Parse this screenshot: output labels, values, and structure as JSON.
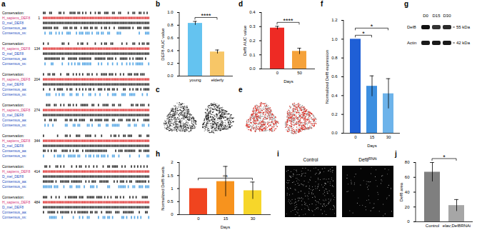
{
  "alignment": {
    "panel": "a",
    "row_labels": [
      "Conservation:",
      "H_sapiens_DEF8",
      "D_mel_DEF8",
      "Consensus_aa:",
      "Consensus_ss:"
    ],
    "block_starts": [
      1,
      134,
      204,
      274,
      344,
      414,
      484
    ]
  },
  "chart_data": [
    {
      "panel": "b",
      "type": "bar",
      "categories": [
        "young",
        "elderly"
      ],
      "values": [
        0.83,
        0.38
      ],
      "errors": [
        0.03,
        0.03
      ],
      "colors": [
        "#64c3f0",
        "#f7c667"
      ],
      "ylabel": "DEF8 AUC value",
      "ylim": [
        0,
        1.0
      ],
      "yticks": [
        {
          "value": 0,
          "label": "0.0"
        },
        0.2,
        0.4,
        0.6,
        0.8,
        {
          "value": 1,
          "label": "1.0"
        }
      ],
      "significance": [
        {
          "label": "****",
          "between": [
            "young",
            "elderly"
          ]
        }
      ]
    },
    {
      "panel": "d",
      "type": "bar",
      "categories": [
        "0",
        "50"
      ],
      "values": [
        0.29,
        0.125
      ],
      "errors": [
        0.012,
        0.022
      ],
      "colors": [
        "#ee2a24",
        "#f5a23a"
      ],
      "ylabel": "Def8 AUC value",
      "xlabel": "Days",
      "ylim": [
        0,
        0.4
      ],
      "yticks": [
        {
          "value": 0,
          "label": "0.0"
        },
        0.1,
        0.2,
        0.3,
        0.4
      ],
      "significance": [
        {
          "label": "****",
          "between": [
            "0",
            "50"
          ]
        }
      ]
    },
    {
      "panel": "f",
      "type": "bar",
      "categories": [
        "0",
        "15",
        "30"
      ],
      "values": [
        1.0,
        0.5,
        0.42
      ],
      "errors": [
        0,
        0.11,
        0.16
      ],
      "colors": [
        "#1f5fd6",
        "#3d8fe0",
        "#6db3ea"
      ],
      "ylabel": "Normalized Def8 expression",
      "xlabel": "Days",
      "ylim": [
        0,
        1.2
      ],
      "yticks": [
        {
          "value": 0,
          "label": "0.0"
        },
        0.2,
        0.4,
        0.6,
        0.8,
        {
          "value": 1,
          "label": "1.0"
        },
        1.2
      ],
      "significance": [
        {
          "label": "*",
          "between": [
            "0",
            "15"
          ]
        },
        {
          "label": "*",
          "between": [
            "0",
            "30"
          ]
        }
      ]
    },
    {
      "panel": "h",
      "type": "bar",
      "categories": [
        "0",
        "15",
        "30"
      ],
      "values": [
        1.0,
        1.27,
        0.92
      ],
      "errors": [
        0,
        0.58,
        0.33
      ],
      "colors": [
        "#f0441f",
        "#f7931e",
        "#f6d62a"
      ],
      "ylabel": "Normalized Def8 levels",
      "xlabel": "Days",
      "ylim": [
        0,
        2
      ],
      "yticks": [
        0,
        0.5,
        1,
        1.5,
        2
      ],
      "significance": [
        {
          "label": "ns",
          "between": [
            "0",
            "30"
          ]
        }
      ]
    },
    {
      "panel": "j",
      "type": "bar",
      "categories": [
        "Control",
        "elav;Def8RNAi"
      ],
      "values": [
        67,
        22
      ],
      "errors": [
        13,
        8
      ],
      "colors": [
        "#7f7f7f",
        "#a6a6a6"
      ],
      "ylabel": "Def8 area",
      "ylim": [
        0,
        80
      ],
      "yticks": [
        0,
        20,
        40,
        60,
        80
      ],
      "significance": [
        {
          "label": "*",
          "between": [
            "Control",
            "elav;Def8RNAi"
          ]
        }
      ]
    }
  ],
  "tsne": [
    {
      "panel": "c",
      "color": "#222222"
    },
    {
      "panel": "e",
      "color": "#d9342b"
    }
  ],
  "blot": {
    "panel": "g",
    "lanes": [
      "D0",
      "D15",
      "D30"
    ],
    "rows": [
      {
        "label": "Def8",
        "size": "55 kDa"
      },
      {
        "label": "Actin",
        "size": "42 kDa"
      }
    ]
  },
  "images": {
    "panel": "i",
    "labels": [
      {
        "text": "Control"
      },
      {
        "text": "Def8",
        "superscript": "RNAi"
      }
    ]
  }
}
